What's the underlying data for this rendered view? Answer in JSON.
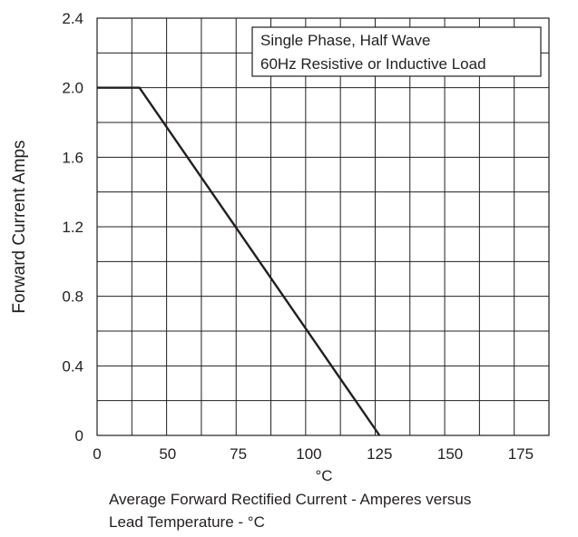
{
  "chart_data": {
    "type": "line",
    "title": "",
    "xlabel": "°C",
    "ylabel": "Forward Current Amps",
    "x_ticks": [
      "0",
      "50",
      "75",
      "100",
      "125",
      "150",
      "175"
    ],
    "y_ticks": [
      "0",
      "0.4",
      "0.8",
      "1.2",
      "1.6",
      "2.0",
      "2.4"
    ],
    "xlim": [
      25,
      185
    ],
    "ylim": [
      0,
      2.4
    ],
    "grid": true,
    "annotation": [
      "Single Phase, Half Wave",
      "60Hz Resistive or Inductive Load"
    ],
    "series": [
      {
        "x": [
          25,
          40,
          125
        ],
        "y": [
          2.0,
          2.0,
          0
        ]
      }
    ],
    "colors": {
      "line": "#231f20",
      "grid": "#231f20"
    }
  },
  "caption": {
    "line1": "Average Forward Rectified Current - Amperes versus",
    "line2": "Lead Temperature  - °C"
  }
}
